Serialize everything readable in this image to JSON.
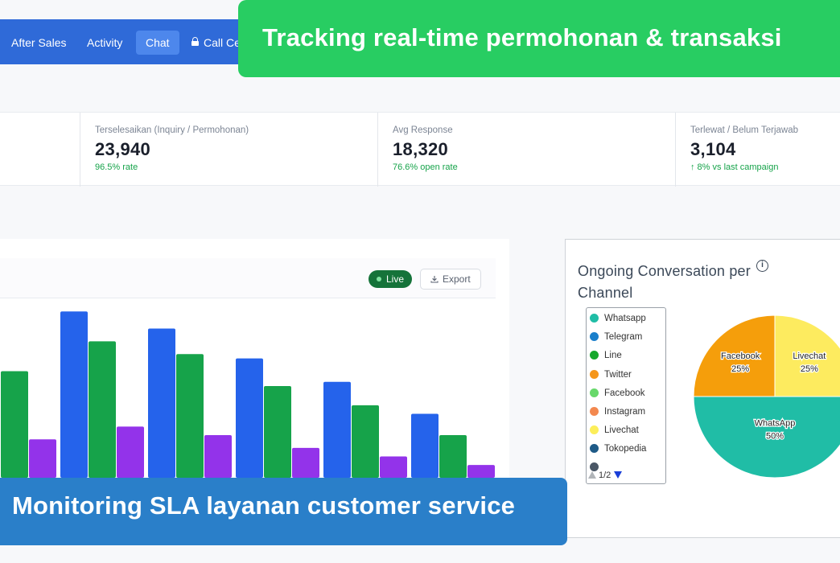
{
  "nav": {
    "items": [
      "After Sales",
      "Activity",
      "Chat",
      "Call Ce"
    ],
    "active_index": 2
  },
  "banner_top": "Tracking real-time permohonan & transaksi",
  "banner_bottom": "Monitoring SLA layanan customer service",
  "stats": [
    {
      "label": "Terselesaikan (Inquiry / Permohonan)",
      "value": "23,940",
      "sub": "96.5% rate"
    },
    {
      "label": "Avg Response",
      "value": "18,320",
      "sub": "76.6% open rate"
    },
    {
      "label": "Terlewat / Belum Terjawab",
      "value": "3,104",
      "sub": "↑ 8% vs last campaign"
    }
  ],
  "chart": {
    "live_label": "Live",
    "export_label": "Export"
  },
  "chart_data": [
    {
      "type": "bar",
      "categories": [
        "",
        "",
        "",
        "",
        "",
        ""
      ],
      "series": [
        {
          "color": "#2563eb",
          "values": [
            null,
            78,
            70,
            56,
            45,
            30
          ]
        },
        {
          "color": "#16a34a",
          "values": [
            50,
            64,
            58,
            43,
            34,
            20
          ]
        },
        {
          "color": "#9333ea",
          "values": [
            18,
            24,
            20,
            14,
            10,
            6
          ]
        }
      ],
      "ylim": [
        0,
        100
      ],
      "grid": false
    },
    {
      "type": "pie",
      "title": "Ongoing Conversation per Channel",
      "slices": [
        {
          "label": "Facebook",
          "value": 25,
          "color": "#f59e0b"
        },
        {
          "label": "Livechat",
          "value": 25,
          "color": "#fdeb5f"
        },
        {
          "label": "WhatsApp",
          "value": 50,
          "color": "#20bda6"
        }
      ],
      "legend": {
        "placement": "left",
        "items": [
          {
            "label": "Whatsapp",
            "color": "#20bda6"
          },
          {
            "label": "Telegram",
            "color": "#1a7fcb"
          },
          {
            "label": "Line",
            "color": "#16a82c"
          },
          {
            "label": "Twitter",
            "color": "#f5961a"
          },
          {
            "label": "Facebook",
            "color": "#67d86a"
          },
          {
            "label": "Instagram",
            "color": "#f3884f"
          },
          {
            "label": "Livechat",
            "color": "#fcee5a"
          },
          {
            "label": "Tokopedia",
            "color": "#1e5a87"
          }
        ],
        "pager": "1/2"
      }
    }
  ]
}
